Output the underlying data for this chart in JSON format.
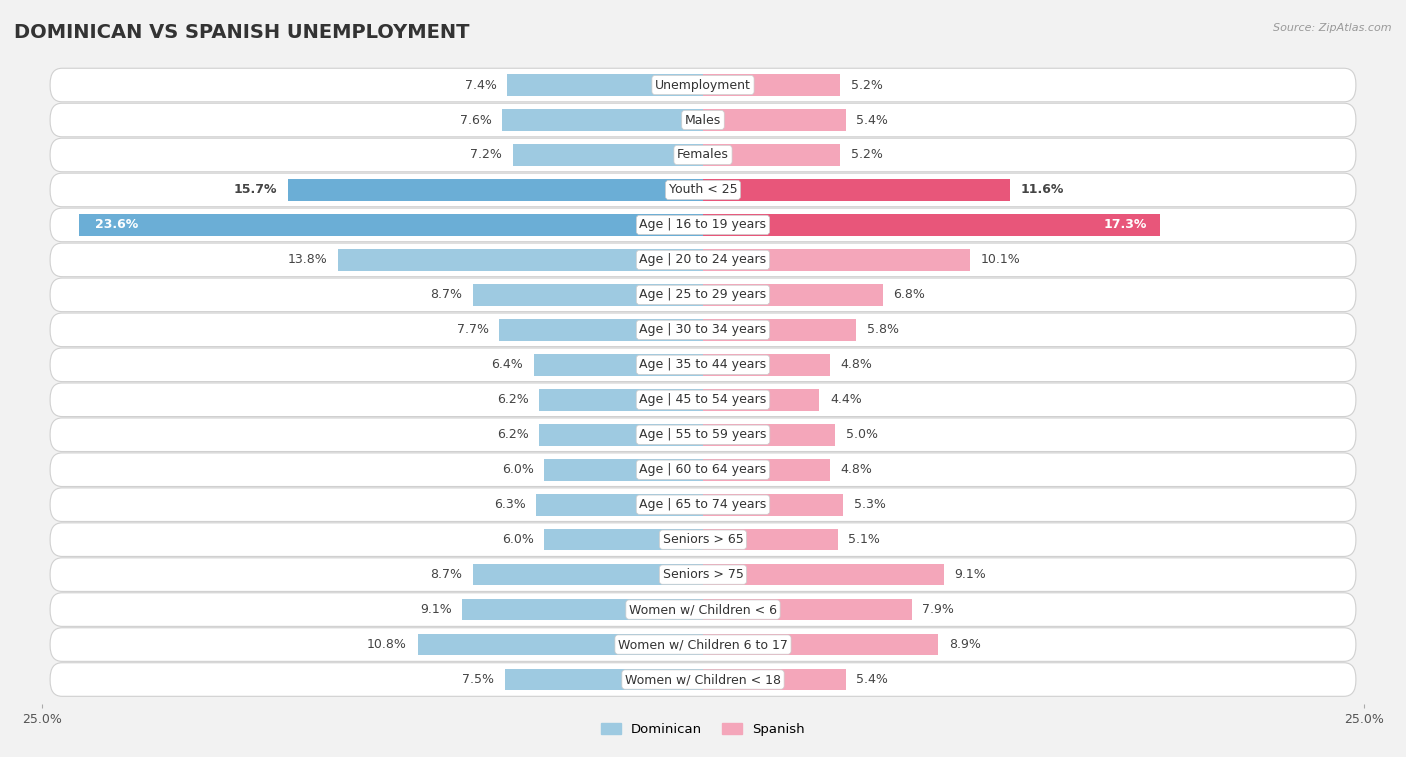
{
  "title": "DOMINICAN VS SPANISH UNEMPLOYMENT",
  "source": "Source: ZipAtlas.com",
  "categories": [
    "Unemployment",
    "Males",
    "Females",
    "Youth < 25",
    "Age | 16 to 19 years",
    "Age | 20 to 24 years",
    "Age | 25 to 29 years",
    "Age | 30 to 34 years",
    "Age | 35 to 44 years",
    "Age | 45 to 54 years",
    "Age | 55 to 59 years",
    "Age | 60 to 64 years",
    "Age | 65 to 74 years",
    "Seniors > 65",
    "Seniors > 75",
    "Women w/ Children < 6",
    "Women w/ Children 6 to 17",
    "Women w/ Children < 18"
  ],
  "dominican": [
    7.4,
    7.6,
    7.2,
    15.7,
    23.6,
    13.8,
    8.7,
    7.7,
    6.4,
    6.2,
    6.2,
    6.0,
    6.3,
    6.0,
    8.7,
    9.1,
    10.8,
    7.5
  ],
  "spanish": [
    5.2,
    5.4,
    5.2,
    11.6,
    17.3,
    10.1,
    6.8,
    5.8,
    4.8,
    4.4,
    5.0,
    4.8,
    5.3,
    5.1,
    9.1,
    7.9,
    8.9,
    5.4
  ],
  "dominican_color": "#9ecae1",
  "spanish_color": "#f4a6ba",
  "dominican_color_highlight": "#6baed6",
  "spanish_color_highlight": "#e8567a",
  "background_color": "#f2f2f2",
  "row_bg_color": "#ffffff",
  "row_border_color": "#d0d0d0",
  "axis_limit": 25.0,
  "title_fontsize": 14,
  "label_fontsize": 9,
  "value_fontsize": 9
}
